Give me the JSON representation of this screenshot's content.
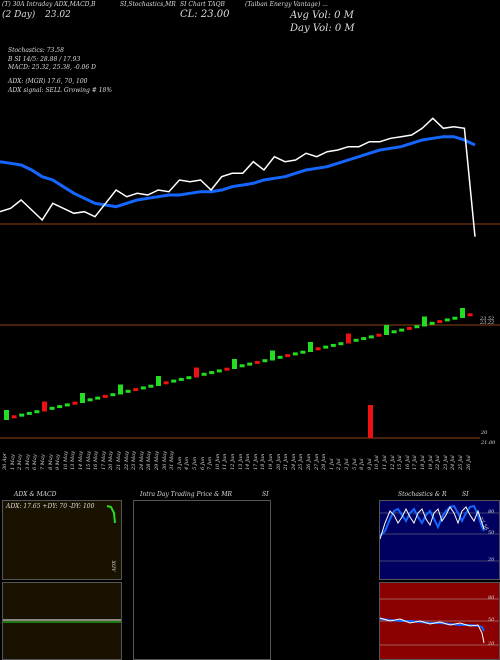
{
  "header": {
    "line1": [
      "(T) 30A Intraday ADX,MACD,B",
      "SI,Stochastics,MR",
      "SI Chart TAQB",
      "(Taiban Energy Vantage) ..."
    ],
    "date": "(2 Day)",
    "price_small": "23.02",
    "cl": "CL: 23.00",
    "avg_vol": "Avg Vol: 0  M",
    "day_vol": "Day Vol: 0  M",
    "stochastics": "Stochastics: 73.58",
    "si": "B   SI 14/5: 28.88  /  17.93",
    "macd": "MACD: 25.32,  25.38, -0.06  D",
    "adx": "ADX:                              (MGR) 17.6,  70,  100",
    "adx_signal": "ADX  signal: SELL Growing # 18%"
  },
  "price_axis": {
    "top": "23.52",
    "top2": "23.22",
    "bottom": "20",
    "bottom2": "21.00"
  },
  "dates": [
    "30 Apr",
    "1 May",
    "2 May",
    "3 May",
    "6 May",
    "7 May",
    "8 May",
    "9 May",
    "10 May",
    "13 May",
    "14 May",
    "15 May",
    "16 May",
    "17 May",
    "20 May",
    "21 May",
    "22 May",
    "23 May",
    "24 May",
    "28 May",
    "29 May",
    "30 May",
    "31 May",
    "3 Jun",
    "4 Jun",
    "5 Jun",
    "6 Jun",
    "7 Jun",
    "10 Jun",
    "11 Jun",
    "12 Jun",
    "13 Jun",
    "14 Jun",
    "17 Jun",
    "18 Jun",
    "19 Jun",
    "20 Jun",
    "21 Jun",
    "24 Jun",
    "25 Jun",
    "26 Jun",
    "27 Jun",
    "28 Jun",
    "1 Jul",
    "2 Jul",
    "3 Jul",
    "5 Jul",
    "8 Jul",
    "9 Jul",
    "10 Jul",
    "11 Jul",
    "12 Jul",
    "15 Jul",
    "16 Jul",
    "17 Jul",
    "18 Jul",
    "19 Jul",
    "22 Jul",
    "23 Jul",
    "24 Jul",
    "25 Jul",
    "26 Jul"
  ],
  "panels": {
    "adx": {
      "title": "ADX  & MACD",
      "readout": "ADX: 17.65  +DY: 70   -DY: 100",
      "axis": "ADX"
    },
    "intraday": {
      "title": "Intra  Day Trading Price  & MR",
      "title2": "SI"
    },
    "stoch": {
      "title": "Stochastics & R",
      "title2": "SI",
      "ticks": [
        "80",
        "50",
        "20"
      ],
      "value": "73.58",
      "ticks2": [
        "80",
        "50",
        "20"
      ]
    }
  },
  "colors": {
    "blue": "#1565ff",
    "white": "#ffffff",
    "green": "#22dd22",
    "red": "#ee1111",
    "brown": "#8b4513",
    "darkblue": "#000060",
    "darkred": "#8b0000"
  },
  "chart_data": {
    "type": "line",
    "series": [
      {
        "values": [
          0.35,
          0.34,
          0.33,
          0.3,
          0.26,
          0.24,
          0.2,
          0.16,
          0.13,
          0.1,
          0.09,
          0.08,
          0.1,
          0.12,
          0.13,
          0.14,
          0.15,
          0.15,
          0.16,
          0.17,
          0.17,
          0.18,
          0.2,
          0.21,
          0.22,
          0.24,
          0.25,
          0.26,
          0.28,
          0.3,
          0.31,
          0.32,
          0.34,
          0.36,
          0.38,
          0.4,
          0.42,
          0.43,
          0.44,
          0.46,
          0.48,
          0.49,
          0.5,
          0.5,
          0.48,
          0.45
        ]
      },
      {
        "values": [
          0.05,
          0.07,
          0.12,
          0.06,
          0.0,
          0.1,
          0.07,
          0.04,
          0.05,
          0.02,
          0.1,
          0.18,
          0.14,
          0.16,
          0.15,
          0.18,
          0.17,
          0.24,
          0.23,
          0.24,
          0.18,
          0.26,
          0.28,
          0.28,
          0.35,
          0.3,
          0.38,
          0.35,
          0.36,
          0.4,
          0.38,
          0.41,
          0.42,
          0.44,
          0.44,
          0.47,
          0.47,
          0.49,
          0.5,
          0.51,
          0.55,
          0.61,
          0.55,
          0.56,
          0.55,
          -0.1
        ]
      }
    ]
  }
}
